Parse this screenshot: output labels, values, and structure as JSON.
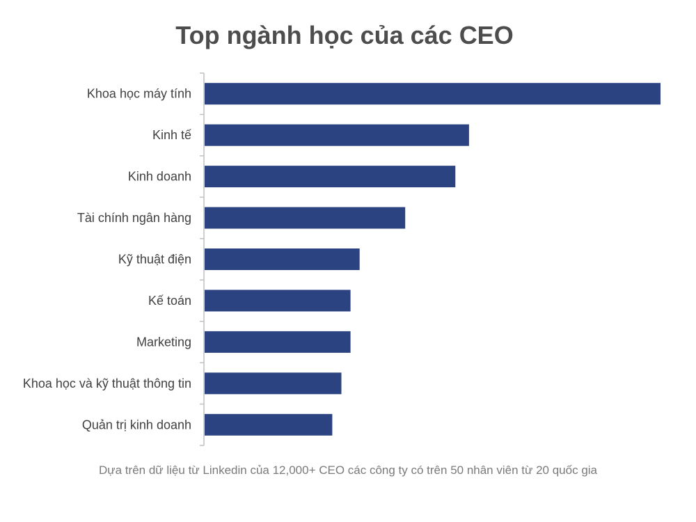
{
  "chart_data": {
    "type": "bar",
    "orientation": "horizontal",
    "title": "Top ngành học của các CEO",
    "note": "Dựa trên dữ liệu từ Linkedin của 12,000+ CEO các công ty có trên 50 nhân viên từ 20 quốc gia",
    "categories": [
      "Khoa học máy tính",
      "Kinh tế",
      "Kinh doanh",
      "Tài chính ngân hàng",
      "Kỹ thuật điện",
      "Kế toán",
      "Marketing",
      "Khoa học và kỹ thuật thông tin",
      "Quản trị kinh doanh"
    ],
    "values": [
      100,
      58,
      55,
      44,
      34,
      32,
      32,
      30,
      28
    ],
    "xlim": [
      0,
      100
    ],
    "grid": false,
    "legend": "none",
    "bar_color": "#2c4381",
    "axis_color": "#bfbfbf"
  }
}
